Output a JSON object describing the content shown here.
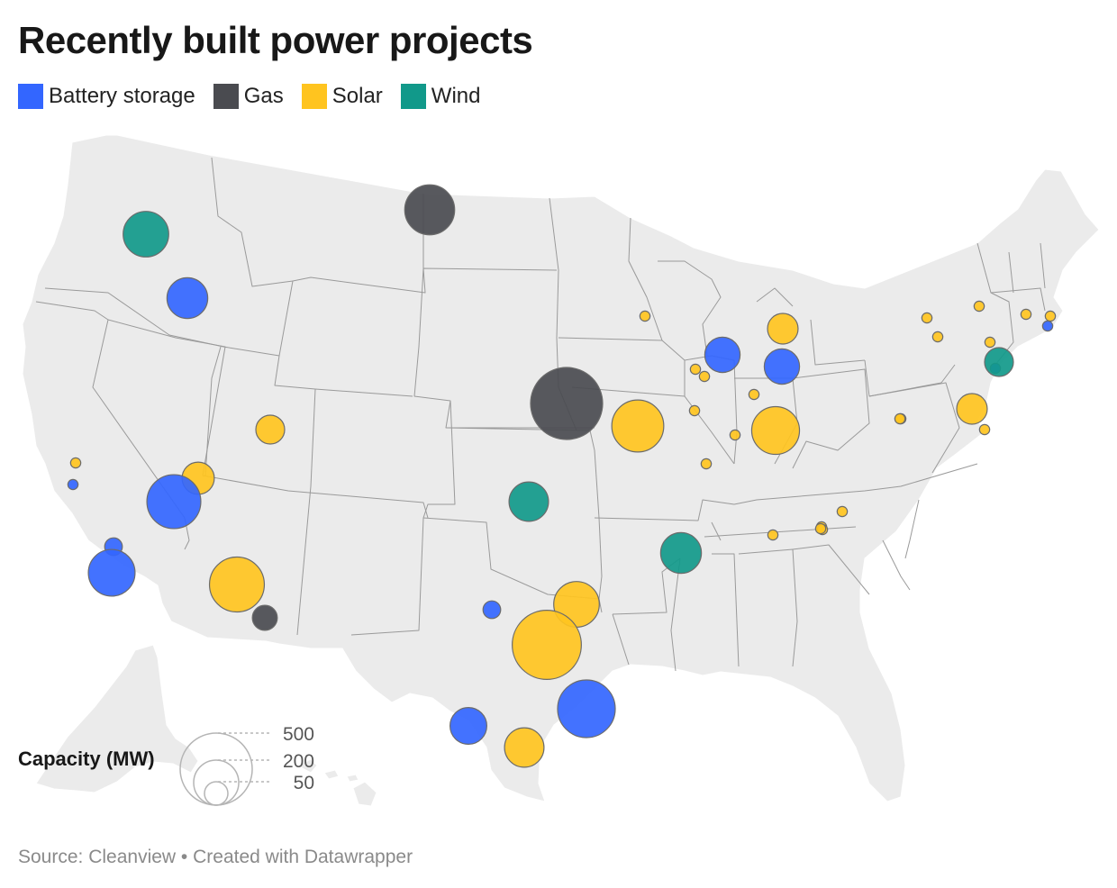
{
  "title": "Recently built power projects",
  "legend": [
    {
      "label": "Battery storage",
      "color": "#3366ff"
    },
    {
      "label": "Gas",
      "color": "#4a4b50"
    },
    {
      "label": "Solar",
      "color": "#ffc41f"
    },
    {
      "label": "Wind",
      "color": "#11998a"
    }
  ],
  "size_legend": {
    "label": "Capacity (MW)",
    "values": [
      "500",
      "200",
      "50"
    ]
  },
  "source": "Source: Cleanview • Created with Datawrapper",
  "colors": {
    "land": "#ebebeb",
    "border": "#9a9a9a",
    "Battery storage": "#3366ff",
    "Gas": "#4a4b50",
    "Solar": "#ffc41f",
    "Wind": "#11998a"
  },
  "chart_data": {
    "type": "proportional-symbol-map",
    "unit": "MW",
    "size_scale_values": [
      500,
      200,
      50
    ],
    "projects": [
      {
        "type": "Wind",
        "mw": 200
      },
      {
        "type": "Battery storage",
        "mw": 160
      },
      {
        "type": "Gas",
        "mw": 240
      },
      {
        "type": "Solar",
        "mw": 10
      },
      {
        "type": "Battery storage",
        "mw": 10
      },
      {
        "type": "Solar",
        "mw": 100
      },
      {
        "type": "Solar",
        "mw": 80
      },
      {
        "type": "Battery storage",
        "mw": 280
      },
      {
        "type": "Battery storage",
        "mw": 30
      },
      {
        "type": "Battery storage",
        "mw": 210
      },
      {
        "type": "Solar",
        "mw": 290
      },
      {
        "type": "Gas",
        "mw": 60
      },
      {
        "type": "Wind",
        "mw": 150
      },
      {
        "type": "Battery storage",
        "mw": 30
      },
      {
        "type": "Solar",
        "mw": 200
      },
      {
        "type": "Solar",
        "mw": 460
      },
      {
        "type": "Battery storage",
        "mw": 320
      },
      {
        "type": "Battery storage",
        "mw": 130
      },
      {
        "type": "Solar",
        "mw": 150
      },
      {
        "type": "Gas",
        "mw": 500
      },
      {
        "type": "Solar",
        "mw": 260
      },
      {
        "type": "Wind",
        "mw": 160
      },
      {
        "type": "Battery storage",
        "mw": 120
      },
      {
        "type": "Solar",
        "mw": 90
      },
      {
        "type": "Battery storage",
        "mw": 120
      },
      {
        "type": "Solar",
        "mw": 220
      },
      {
        "type": "Solar",
        "mw": 10
      },
      {
        "type": "Solar",
        "mw": 10
      },
      {
        "type": "Solar",
        "mw": 10
      },
      {
        "type": "Solar",
        "mw": 10
      },
      {
        "type": "Solar",
        "mw": 10
      },
      {
        "type": "Solar",
        "mw": 10
      },
      {
        "type": "Solar",
        "mw": 10
      },
      {
        "type": "Solar",
        "mw": 10
      },
      {
        "type": "Solar",
        "mw": 10
      },
      {
        "type": "Solar",
        "mw": 10
      },
      {
        "type": "Solar",
        "mw": 10
      },
      {
        "type": "Solar",
        "mw": 10
      },
      {
        "type": "Solar",
        "mw": 10
      },
      {
        "type": "Solar",
        "mw": 10
      },
      {
        "type": "Solar",
        "mw": 90
      },
      {
        "type": "Solar",
        "mw": 10
      },
      {
        "type": "Solar",
        "mw": 10
      },
      {
        "type": "Solar",
        "mw": 10
      },
      {
        "type": "Solar",
        "mw": 10
      },
      {
        "type": "Solar",
        "mw": 10
      },
      {
        "type": "Solar",
        "mw": 10
      },
      {
        "type": "Solar",
        "mw": 10
      },
      {
        "type": "Battery storage",
        "mw": 10
      },
      {
        "type": "Battery storage",
        "mw": 10
      },
      {
        "type": "Wind",
        "mw": 80
      }
    ]
  }
}
